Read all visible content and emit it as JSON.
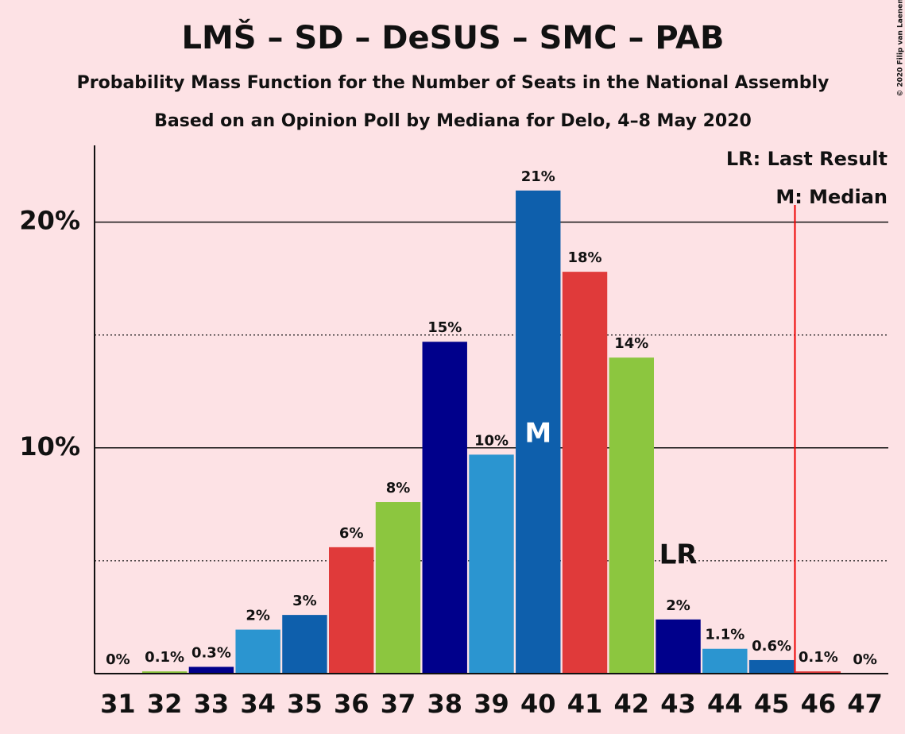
{
  "chart_data": {
    "type": "bar",
    "title": "LMŠ – SD – DeSUS – SMC – PAB",
    "subtitle": "Probability Mass Function for the Number of Seats in the National Assembly",
    "subtitle2": "Based on an Opinion Poll by Mediana for Delo, 4–8 May 2020",
    "copyright": "© 2020 Filip van Laenen",
    "legend": [
      "LR: Last Result",
      "M: Median"
    ],
    "categories": [
      "31",
      "32",
      "33",
      "34",
      "35",
      "36",
      "37",
      "38",
      "39",
      "40",
      "41",
      "42",
      "43",
      "44",
      "45",
      "46",
      "47"
    ],
    "values": [
      0,
      0.1,
      0.3,
      1.95,
      2.6,
      5.6,
      7.6,
      14.7,
      9.7,
      21.4,
      17.8,
      14.0,
      2.4,
      1.1,
      0.6,
      0.1,
      0
    ],
    "value_labels": [
      "0%",
      "0.1%",
      "0.3%",
      "2%",
      "3%",
      "6%",
      "8%",
      "15%",
      "10%",
      "21%",
      "18%",
      "14%",
      "2%",
      "1.1%",
      "0.6%",
      "0.1%",
      "0%"
    ],
    "colors": [
      "#e03a3a",
      "#8cc63f",
      "#00008b",
      "#2b95d0",
      "#0e5fac",
      "#e03a3a",
      "#8cc63f",
      "#00008b",
      "#2b95d0",
      "#0e5fac",
      "#e03a3a",
      "#8cc63f",
      "#00008b",
      "#2b95d0",
      "#0e5fac",
      "#e03a3a",
      "#8cc63f"
    ],
    "markers": [
      {
        "index": 9,
        "label": "M"
      },
      {
        "index": 12,
        "label": "LR"
      }
    ],
    "majority_line_x": 45.5,
    "ylim": [
      0,
      23.4
    ],
    "yticks": [
      {
        "value": 10,
        "label": "10%"
      },
      {
        "value": 20,
        "label": "20%"
      }
    ],
    "minor_gridlines": [
      5,
      15
    ],
    "grid": true
  }
}
